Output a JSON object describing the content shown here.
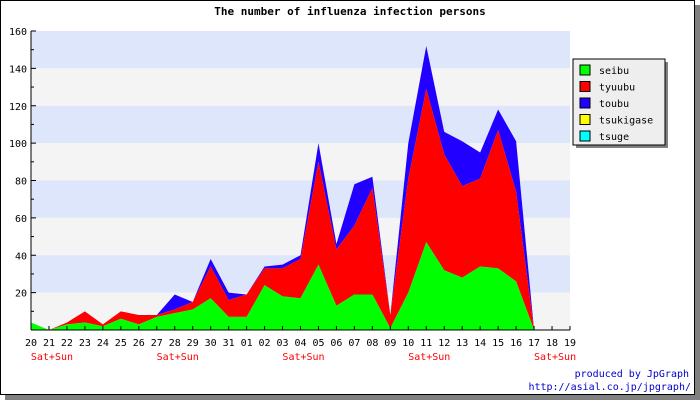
{
  "chart_data": {
    "type": "area",
    "stacked": true,
    "title": "The number of influenza infection persons",
    "xlabel": "",
    "ylabel": "",
    "ylim": [
      0,
      160
    ],
    "yticks": [
      20,
      40,
      60,
      80,
      100,
      120,
      140,
      160
    ],
    "categories": [
      "20",
      "21",
      "22",
      "23",
      "24",
      "25",
      "26",
      "27",
      "28",
      "29",
      "30",
      "31",
      "01",
      "02",
      "03",
      "04",
      "05",
      "06",
      "07",
      "08",
      "09",
      "10",
      "11",
      "12",
      "13",
      "14",
      "15",
      "16",
      "17",
      "18",
      "19"
    ],
    "x_notes": [
      {
        "index": 1,
        "text": "Sat+Sun"
      },
      {
        "index": 8,
        "text": "Sat+Sun"
      },
      {
        "index": 15,
        "text": "Sat+Sun"
      },
      {
        "index": 22,
        "text": "Sat+Sun"
      },
      {
        "index": 29,
        "text": "Sat+Sun"
      }
    ],
    "series": [
      {
        "name": "seibu",
        "color": "#00ff00",
        "values": [
          4,
          0,
          3,
          4,
          2,
          6,
          3,
          7,
          9,
          11,
          17,
          7,
          7,
          24,
          18,
          17,
          35,
          13,
          19,
          19,
          1,
          20,
          47,
          32,
          28,
          34,
          33,
          26,
          0,
          0,
          0
        ]
      },
      {
        "name": "tyuubu",
        "color": "#ff0000",
        "values": [
          0,
          0,
          1,
          6,
          1,
          4,
          5,
          1,
          2,
          4,
          17,
          9,
          12,
          9,
          15,
          21,
          55,
          30,
          37,
          57,
          7,
          61,
          82,
          62,
          49,
          47,
          74,
          48,
          0,
          0,
          0
        ]
      },
      {
        "name": "toubu",
        "color": "#2200ff",
        "values": [
          0,
          0,
          0,
          0,
          0,
          0,
          0,
          0,
          8,
          0,
          4,
          4,
          0,
          1,
          2,
          2,
          10,
          3,
          22,
          6,
          0,
          19,
          23,
          12,
          24,
          14,
          11,
          27,
          0,
          0,
          0
        ]
      },
      {
        "name": "tsukigase",
        "color": "#ffff00",
        "values": [
          0,
          0,
          0,
          0,
          0,
          0,
          0,
          0,
          0,
          0,
          0,
          0,
          0,
          0,
          0,
          0,
          0,
          0,
          0,
          0,
          0,
          0,
          0,
          0,
          0,
          0,
          0,
          0,
          0,
          0,
          0
        ]
      },
      {
        "name": "tsuge",
        "color": "#00ffff",
        "values": [
          0,
          0,
          0,
          0,
          0,
          0,
          0,
          0,
          0,
          0,
          0,
          0,
          0,
          0,
          0,
          0,
          0,
          0,
          0,
          0,
          0,
          0,
          0,
          0,
          0,
          0,
          0,
          0,
          0,
          0,
          0
        ]
      }
    ],
    "legend_position": "top-right",
    "grid": "horizontal bands",
    "colors": {
      "band_a": "#dde6fb",
      "band_b": "#f4f4f4",
      "note": "#ff0000",
      "credit": "#0000cc"
    }
  },
  "credit": {
    "line1": "produced by JpGraph",
    "line2": "http://asial.co.jp/jpgraph/"
  }
}
